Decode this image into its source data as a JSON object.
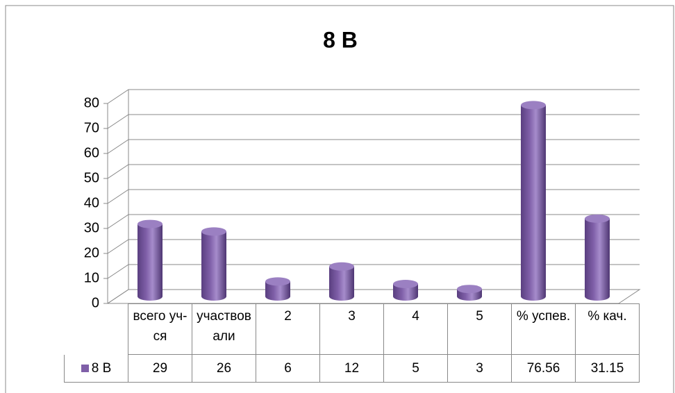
{
  "chart_data": {
    "type": "bar3d",
    "title": "8 В",
    "categories": [
      "всего уч-ся",
      "участвовали",
      "2",
      "3",
      "4",
      "5",
      "% успев.",
      "% кач."
    ],
    "series": [
      {
        "name": "8 В",
        "color": "#7f5fa8",
        "values": [
          29,
          26,
          6,
          12,
          5,
          3,
          76.56,
          31.15
        ]
      }
    ],
    "ylim": [
      0,
      80
    ],
    "yticks": [
      0,
      10,
      20,
      30,
      40,
      50,
      60,
      70,
      80
    ],
    "grid": true,
    "data_table": true
  }
}
